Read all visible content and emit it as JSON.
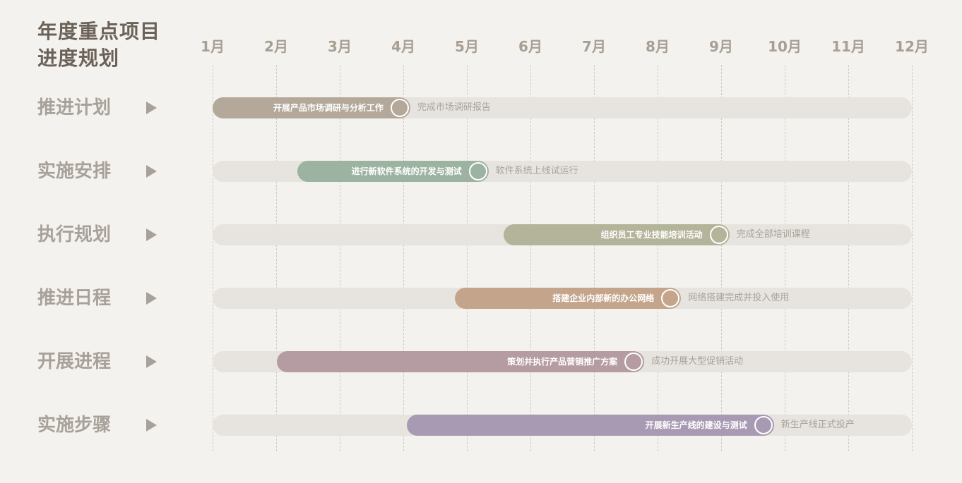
{
  "title_lines": [
    "年度重点项目",
    "进度规划"
  ],
  "months": [
    "1月",
    "2月",
    "3月",
    "4月",
    "5月",
    "6月",
    "7月",
    "8月",
    "9月",
    "10月",
    "11月",
    "12月"
  ],
  "track_color": "#e7e4df",
  "rows": [
    {
      "label": "推进计划",
      "task": "开展产品市场调研与分析工作",
      "milestone": "完成市场调研报告",
      "start_month": 1.0,
      "end_month": 4.11,
      "color": "#b3a89a"
    },
    {
      "label": "实施安排",
      "task": "进行新软件系统的开发与测试",
      "milestone": "软件系统上线试运行",
      "start_month": 2.33,
      "end_month": 5.34,
      "color": "#9db3a2"
    },
    {
      "label": "执行规划",
      "task": "组织员工专业技能培训活动",
      "milestone": "完成全部培训课程",
      "start_month": 5.58,
      "end_month": 9.13,
      "color": "#b4b49a"
    },
    {
      "label": "推进日程",
      "task": "搭建企业内部新的办公网络",
      "milestone": "网络搭建完成并投入使用",
      "start_month": 4.81,
      "end_month": 8.37,
      "color": "#c4a58b"
    },
    {
      "label": "开展进程",
      "task": "策划并执行产品营销推广方案",
      "milestone": "成功开展大型促销活动",
      "start_month": 2.01,
      "end_month": 7.79,
      "color": "#b59ba2"
    },
    {
      "label": "实施步骤",
      "task": "开展新生产线的建设与测试",
      "milestone": "新生产线正式投产",
      "start_month": 4.06,
      "end_month": 9.83,
      "color": "#a89ab3"
    }
  ]
}
